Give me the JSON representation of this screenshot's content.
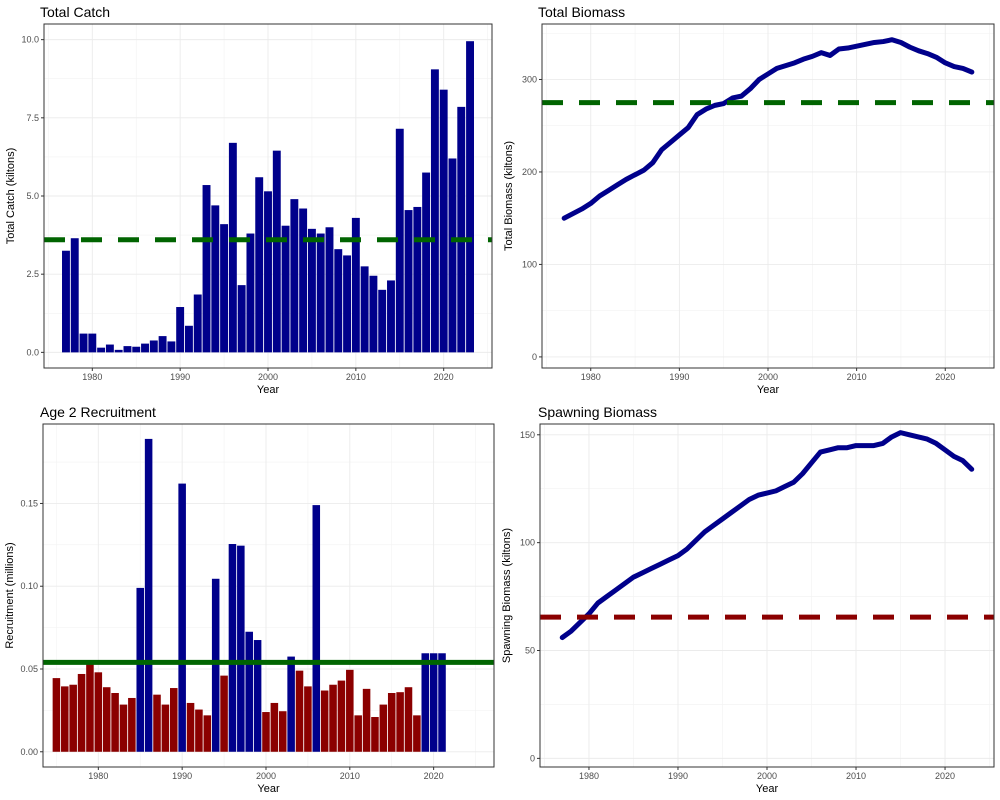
{
  "colors": {
    "bar_blue": "#00008B",
    "bar_red": "#8B0000",
    "line_blue": "#00008B",
    "ref_green": "#006400",
    "ref_red": "#8B0000"
  },
  "chart_data": [
    {
      "id": "catch",
      "type": "bar",
      "title": "Total Catch",
      "xlabel": "Year",
      "ylabel": "Total Catch (kiltons)",
      "xlim": [
        1974.5,
        2025.5
      ],
      "ylim": [
        -0.5,
        10.5
      ],
      "xticks": [
        1980,
        1990,
        2000,
        2010,
        2020
      ],
      "yticks": [
        0,
        2.5,
        5,
        7.5,
        10
      ],
      "ytick_labels": [
        "0.0",
        "2.5",
        "5.0",
        "7.5",
        "10.0"
      ],
      "x": [
        1977,
        1978,
        1979,
        1980,
        1981,
        1982,
        1983,
        1984,
        1985,
        1986,
        1987,
        1988,
        1989,
        1990,
        1991,
        1992,
        1993,
        1994,
        1995,
        1996,
        1997,
        1998,
        1999,
        2000,
        2001,
        2002,
        2003,
        2004,
        2005,
        2006,
        2007,
        2008,
        2009,
        2010,
        2011,
        2012,
        2013,
        2014,
        2015,
        2016,
        2017,
        2018,
        2019,
        2020,
        2021,
        2022,
        2023
      ],
      "values": [
        3.25,
        3.65,
        0.6,
        0.6,
        0.15,
        0.25,
        0.08,
        0.2,
        0.18,
        0.28,
        0.38,
        0.52,
        0.35,
        1.45,
        0.85,
        1.85,
        5.35,
        4.7,
        4.1,
        6.7,
        2.15,
        3.8,
        5.6,
        5.15,
        6.45,
        4.05,
        4.9,
        4.6,
        3.95,
        3.8,
        4.0,
        3.3,
        3.1,
        4.3,
        2.75,
        2.45,
        2.0,
        2.3,
        7.15,
        4.55,
        4.65,
        5.75,
        9.05,
        8.4,
        6.2,
        7.85,
        9.95
      ],
      "bar_color": "#00008B",
      "reference": {
        "value": 3.6,
        "style": "dashed",
        "color": "#006400"
      }
    },
    {
      "id": "biomass",
      "type": "line",
      "title": "Total Biomass",
      "xlabel": "Year",
      "ylabel": "Total Biomass (kiltons)",
      "xlim": [
        1974.5,
        2025.5
      ],
      "ylim": [
        -12,
        360
      ],
      "xticks": [
        1980,
        1990,
        2000,
        2010,
        2020
      ],
      "yticks": [
        0,
        100,
        200,
        300
      ],
      "ytick_labels": [
        "0",
        "100",
        "200",
        "300"
      ],
      "x": [
        1977,
        1978,
        1979,
        1980,
        1981,
        1982,
        1983,
        1984,
        1985,
        1986,
        1987,
        1988,
        1989,
        1990,
        1991,
        1992,
        1993,
        1994,
        1995,
        1996,
        1997,
        1998,
        1999,
        2000,
        2001,
        2002,
        2003,
        2004,
        2005,
        2006,
        2007,
        2008,
        2009,
        2010,
        2011,
        2012,
        2013,
        2014,
        2015,
        2016,
        2017,
        2018,
        2019,
        2020,
        2021,
        2022,
        2023
      ],
      "values": [
        150,
        155,
        160,
        166,
        174,
        180,
        186,
        192,
        197,
        202,
        210,
        224,
        232,
        240,
        248,
        262,
        268,
        272,
        274,
        280,
        282,
        290,
        300,
        306,
        312,
        315,
        318,
        322,
        325,
        329,
        326,
        333,
        334,
        336,
        338,
        340,
        341,
        343,
        340,
        335,
        331,
        328,
        324,
        318,
        314,
        312,
        308
      ],
      "line_color": "#00008B",
      "reference": {
        "value": 275,
        "style": "dashed",
        "color": "#006400"
      }
    },
    {
      "id": "recruit",
      "type": "bar",
      "title": "Age 2 Recruitment",
      "xlabel": "Year",
      "ylabel": "Recruitment (millions)",
      "xlim": [
        1973.4,
        2027.2
      ],
      "ylim": [
        -0.0092,
        0.198
      ],
      "xticks": [
        1980,
        1990,
        2000,
        2010,
        2020
      ],
      "yticks": [
        0,
        0.05,
        0.1,
        0.15
      ],
      "ytick_labels": [
        "0.00",
        "0.05",
        "0.10",
        "0.15"
      ],
      "x": [
        1975,
        1976,
        1977,
        1978,
        1979,
        1980,
        1981,
        1982,
        1983,
        1984,
        1985,
        1986,
        1987,
        1988,
        1989,
        1990,
        1991,
        1992,
        1993,
        1994,
        1995,
        1996,
        1997,
        1998,
        1999,
        2000,
        2001,
        2002,
        2003,
        2004,
        2005,
        2006,
        2007,
        2008,
        2009,
        2010,
        2011,
        2012,
        2013,
        2014,
        2015,
        2016,
        2017,
        2018,
        2019,
        2020,
        2021
      ],
      "values": [
        0.0445,
        0.0395,
        0.0405,
        0.047,
        0.054,
        0.048,
        0.039,
        0.0355,
        0.0285,
        0.0325,
        0.099,
        0.189,
        0.0345,
        0.0285,
        0.0385,
        0.162,
        0.0295,
        0.0255,
        0.022,
        0.1045,
        0.046,
        0.1255,
        0.1245,
        0.0725,
        0.0675,
        0.024,
        0.0295,
        0.0245,
        0.0575,
        0.049,
        0.0395,
        0.149,
        0.037,
        0.0405,
        0.043,
        0.0495,
        0.022,
        0.038,
        0.021,
        0.0285,
        0.0355,
        0.036,
        0.039,
        0.022,
        0.0595,
        0.0595,
        0.0595
      ],
      "threshold": 0.054,
      "above_color": "#00008B",
      "below_color": "#8B0000",
      "reference": {
        "value": 0.054,
        "style": "solid",
        "color": "#006400"
      }
    },
    {
      "id": "ssb",
      "type": "line",
      "title": "Spawning Biomass",
      "xlabel": "Year",
      "ylabel": "Spawning Biomass (kiltons)",
      "xlim": [
        1974.5,
        2025.5
      ],
      "ylim": [
        -4,
        155
      ],
      "xticks": [
        1980,
        1990,
        2000,
        2010,
        2020
      ],
      "yticks": [
        0,
        50,
        100,
        150
      ],
      "ytick_labels": [
        "0",
        "50",
        "100",
        "150"
      ],
      "x": [
        1977,
        1978,
        1979,
        1980,
        1981,
        1982,
        1983,
        1984,
        1985,
        1986,
        1987,
        1988,
        1989,
        1990,
        1991,
        1992,
        1993,
        1994,
        1995,
        1996,
        1997,
        1998,
        1999,
        2000,
        2001,
        2002,
        2003,
        2004,
        2005,
        2006,
        2007,
        2008,
        2009,
        2010,
        2011,
        2012,
        2013,
        2014,
        2015,
        2016,
        2017,
        2018,
        2019,
        2020,
        2021,
        2022,
        2023
      ],
      "values": [
        56,
        59,
        63,
        67,
        72,
        75,
        78,
        81,
        84,
        86,
        88,
        90,
        92,
        94,
        97,
        101,
        105,
        108,
        111,
        114,
        117,
        120,
        122,
        123,
        124,
        126,
        128,
        132,
        137,
        142,
        143,
        144,
        144,
        145,
        145,
        145,
        146,
        149,
        151,
        150,
        149,
        148,
        146,
        143,
        140,
        138,
        134
      ],
      "line_color": "#00008B",
      "reference": {
        "value": 65.5,
        "style": "dashed",
        "color": "#8B0000"
      }
    }
  ]
}
